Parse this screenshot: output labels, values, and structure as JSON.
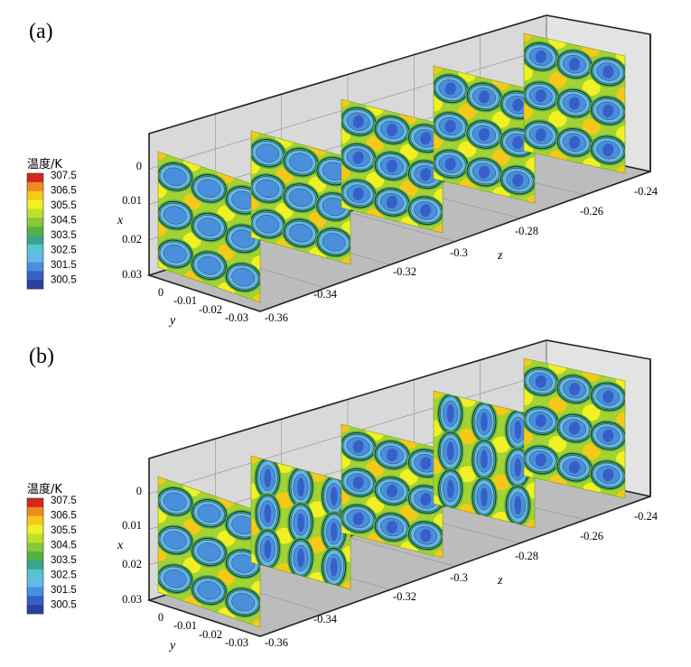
{
  "chart_data": [
    {
      "panel_label": "(a)",
      "type": "heatmap",
      "legend": {
        "title": "温度/K",
        "ticks": [
          "307.5",
          "306.5",
          "305.5",
          "304.5",
          "303.5",
          "302.5",
          "301.5",
          "300.5"
        ]
      },
      "axes": {
        "x": {
          "label": "x",
          "ticks": [
            "0",
            "0.01",
            "0.02",
            "0.03"
          ]
        },
        "y": {
          "label": "y",
          "ticks": [
            "0",
            "-0.01",
            "-0.02",
            "-0.03"
          ]
        },
        "z": {
          "label": "z",
          "ticks": [
            "-0.36",
            "-0.34",
            "-0.32",
            "-0.3",
            "-0.28",
            "-0.26",
            "-0.24"
          ]
        }
      },
      "slices": [
        {
          "z": -0.36,
          "rows": 3,
          "cols": 3,
          "ellipse_orientation": "horizontal"
        },
        {
          "z": -0.33,
          "rows": 3,
          "cols": 3,
          "ellipse_orientation": "horizontal"
        },
        {
          "z": -0.3,
          "rows": 3,
          "cols": 3,
          "ellipse_orientation": "horizontal"
        },
        {
          "z": -0.27,
          "rows": 3,
          "cols": 3,
          "ellipse_orientation": "horizontal"
        },
        {
          "z": -0.24,
          "rows": 3,
          "cols": 3,
          "ellipse_orientation": "horizontal"
        }
      ]
    },
    {
      "panel_label": "(b)",
      "type": "heatmap",
      "legend": {
        "title": "温度/K",
        "ticks": [
          "307.5",
          "306.5",
          "305.5",
          "304.5",
          "303.5",
          "302.5",
          "301.5",
          "300.5"
        ]
      },
      "axes": {
        "x": {
          "label": "x",
          "ticks": [
            "0",
            "0.01",
            "0.02",
            "0.03"
          ]
        },
        "y": {
          "label": "y",
          "ticks": [
            "0",
            "-0.01",
            "-0.02",
            "-0.03"
          ]
        },
        "z": {
          "label": "z",
          "ticks": [
            "-0.36",
            "-0.34",
            "-0.32",
            "-0.3",
            "-0.28",
            "-0.26",
            "-0.24"
          ]
        }
      },
      "slices": [
        {
          "z": -0.36,
          "rows": 3,
          "cols": 3,
          "ellipse_orientation": "horizontal"
        },
        {
          "z": -0.33,
          "rows": 3,
          "cols": 3,
          "ellipse_orientation": "vertical"
        },
        {
          "z": -0.3,
          "rows": 3,
          "cols": 3,
          "ellipse_orientation": "horizontal"
        },
        {
          "z": -0.27,
          "rows": 3,
          "cols": 3,
          "ellipse_orientation": "vertical"
        },
        {
          "z": -0.24,
          "rows": 3,
          "cols": 3,
          "ellipse_orientation": "horizontal"
        }
      ]
    }
  ],
  "colors": {
    "scale": [
      "#d7261e",
      "#f08c1f",
      "#f5c81a",
      "#f2f025",
      "#bfe02a",
      "#88c83a",
      "#55b044",
      "#3aa38a",
      "#55c3d0",
      "#63b9e8",
      "#4a8fdc",
      "#3660c8",
      "#2b3f9e"
    ],
    "background": "#a3d232",
    "box_back": "#d9d9d9",
    "box_floor": "#bcbcbc"
  }
}
